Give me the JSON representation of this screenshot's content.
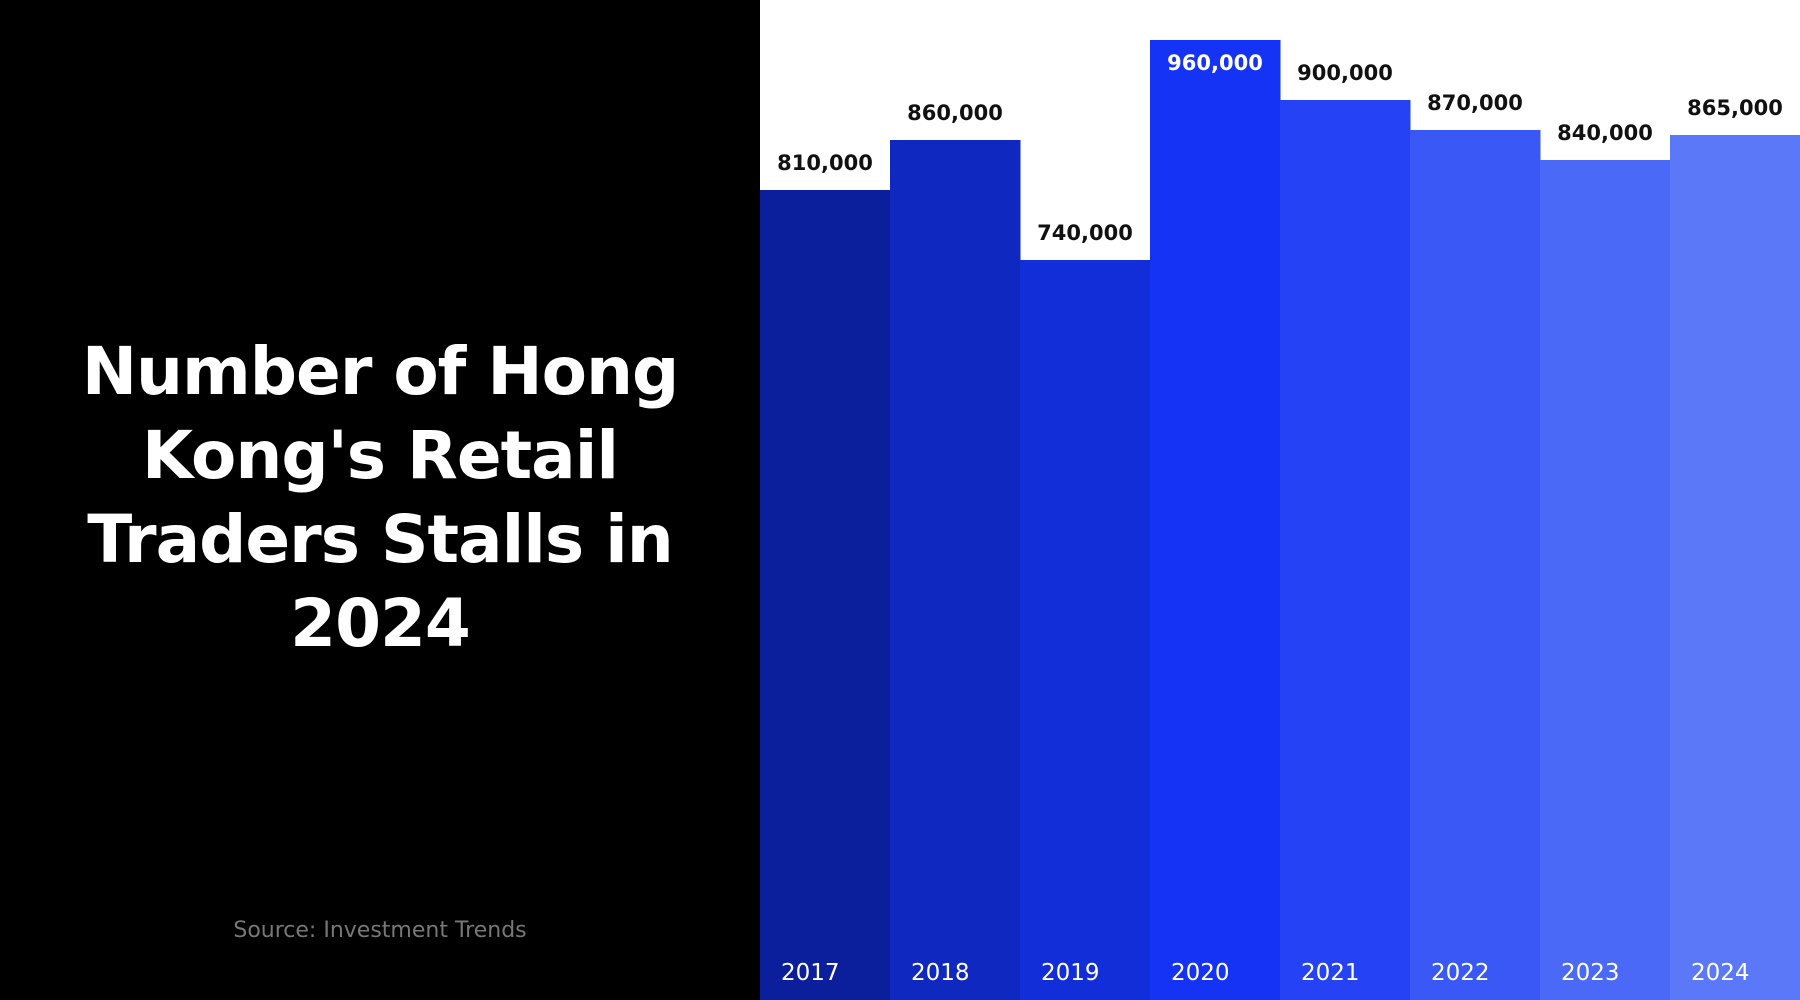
{
  "title": "Number of Hong Kong's Retail Traders Stalls in 2024",
  "source": "Source: Investment Trends",
  "colors": {
    "background_left": "#000000",
    "background_right": "#ffffff",
    "bars": [
      "#0b1e9b",
      "#0f28c0",
      "#122ed8",
      "#1533f4",
      "#2543f5",
      "#3958f6",
      "#4b69f7",
      "#5a78f8"
    ]
  },
  "chart_data": {
    "type": "bar",
    "title": "Number of Hong Kong's Retail Traders Stalls in 2024",
    "categories": [
      "2017",
      "2018",
      "2019",
      "2020",
      "2021",
      "2022",
      "2023",
      "2024"
    ],
    "values": [
      810000,
      860000,
      740000,
      960000,
      900000,
      870000,
      840000,
      865000
    ],
    "data_labels": [
      "810,000",
      "860,000",
      "740,000",
      "960,000",
      "900,000",
      "870,000",
      "840,000",
      "865,000"
    ],
    "ylim": [
      0,
      1000000
    ],
    "grid": false,
    "legend": "none"
  }
}
